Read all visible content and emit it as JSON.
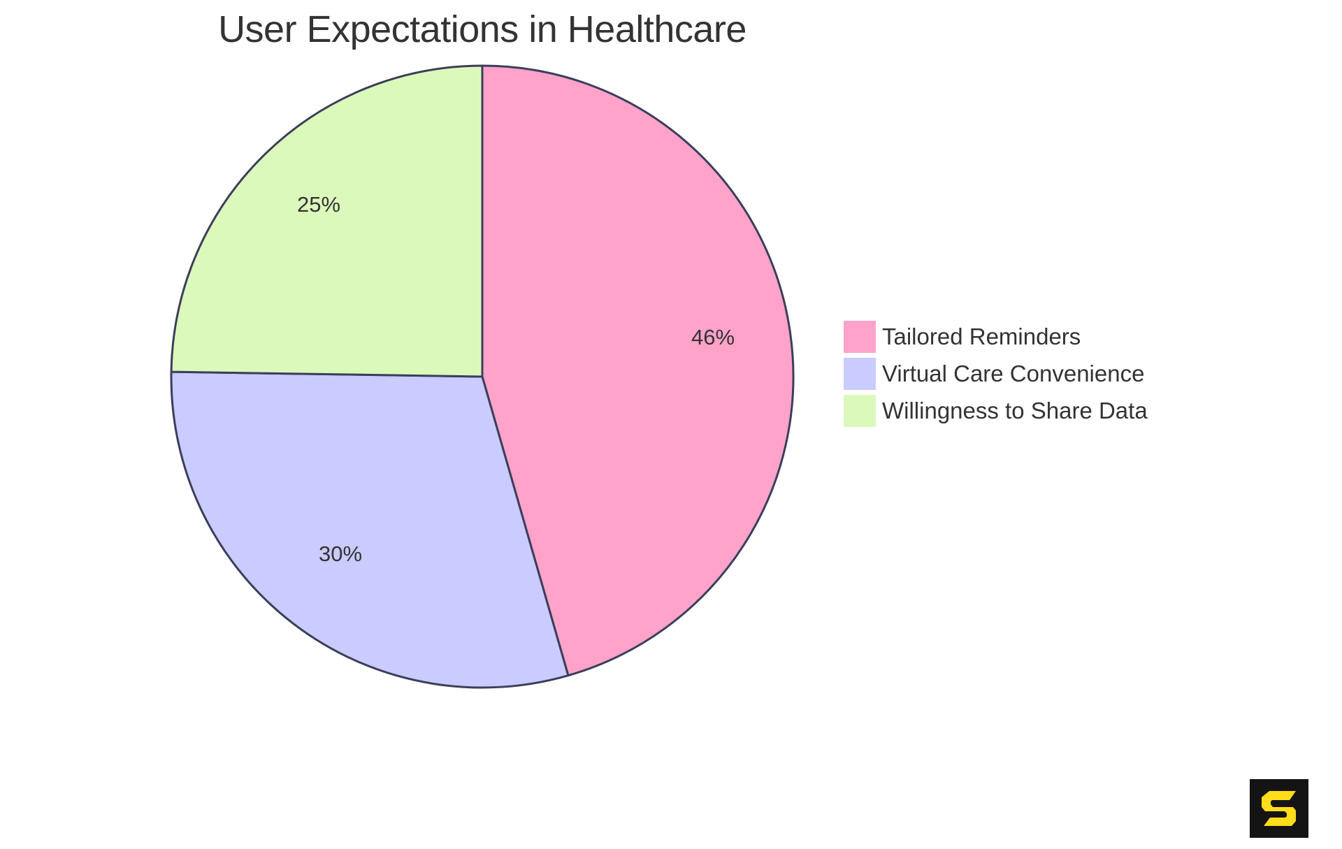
{
  "chart_data": {
    "type": "pie",
    "title": "User Expectations in Healthcare",
    "categories": [
      "Tailored Reminders",
      "Virtual Care Convenience",
      "Willingness to Share Data"
    ],
    "values": [
      46,
      30,
      25
    ],
    "labels": [
      "46%",
      "30%",
      "25%"
    ],
    "colors": [
      "#FFA3CB",
      "#CACBFF",
      "#DCF9BC"
    ],
    "stroke_color": "#3B3E5A",
    "start_angle": "top, clockwise",
    "legend_position": "right"
  },
  "title": "User Expectations in Healthcare",
  "legend": {
    "items": [
      {
        "label": "Tailored Reminders",
        "color": "#FFA3CB"
      },
      {
        "label": "Virtual Care Convenience",
        "color": "#CACBFF"
      },
      {
        "label": "Willingness to Share Data",
        "color": "#DCF9BC"
      }
    ]
  },
  "logo": {
    "icon": "s-logo-icon",
    "background": "#141414",
    "color": "#FFDD1A"
  }
}
